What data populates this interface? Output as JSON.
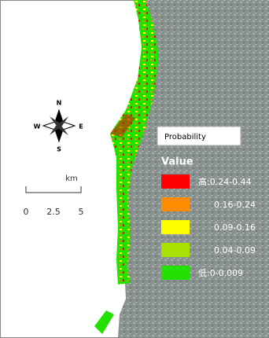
{
  "compass": {
    "north": "N",
    "south": "S",
    "west": "W",
    "east": "E"
  },
  "scale_bar": {
    "unit": "km",
    "labels": [
      "0",
      "2.5",
      "5"
    ]
  },
  "legend": {
    "title": "Probability",
    "subtitle": "Value",
    "items": [
      {
        "label": "高:0.24-0.44",
        "color": "#ff0000"
      },
      {
        "label": "0.16-0.24",
        "color": "#ff8c00"
      },
      {
        "label": "0.09-0.16",
        "color": "#ffff00"
      },
      {
        "label": "0.04-0.09",
        "color": "#a8e000"
      },
      {
        "label": "低:0-0.009",
        "color": "#22e000"
      }
    ]
  }
}
